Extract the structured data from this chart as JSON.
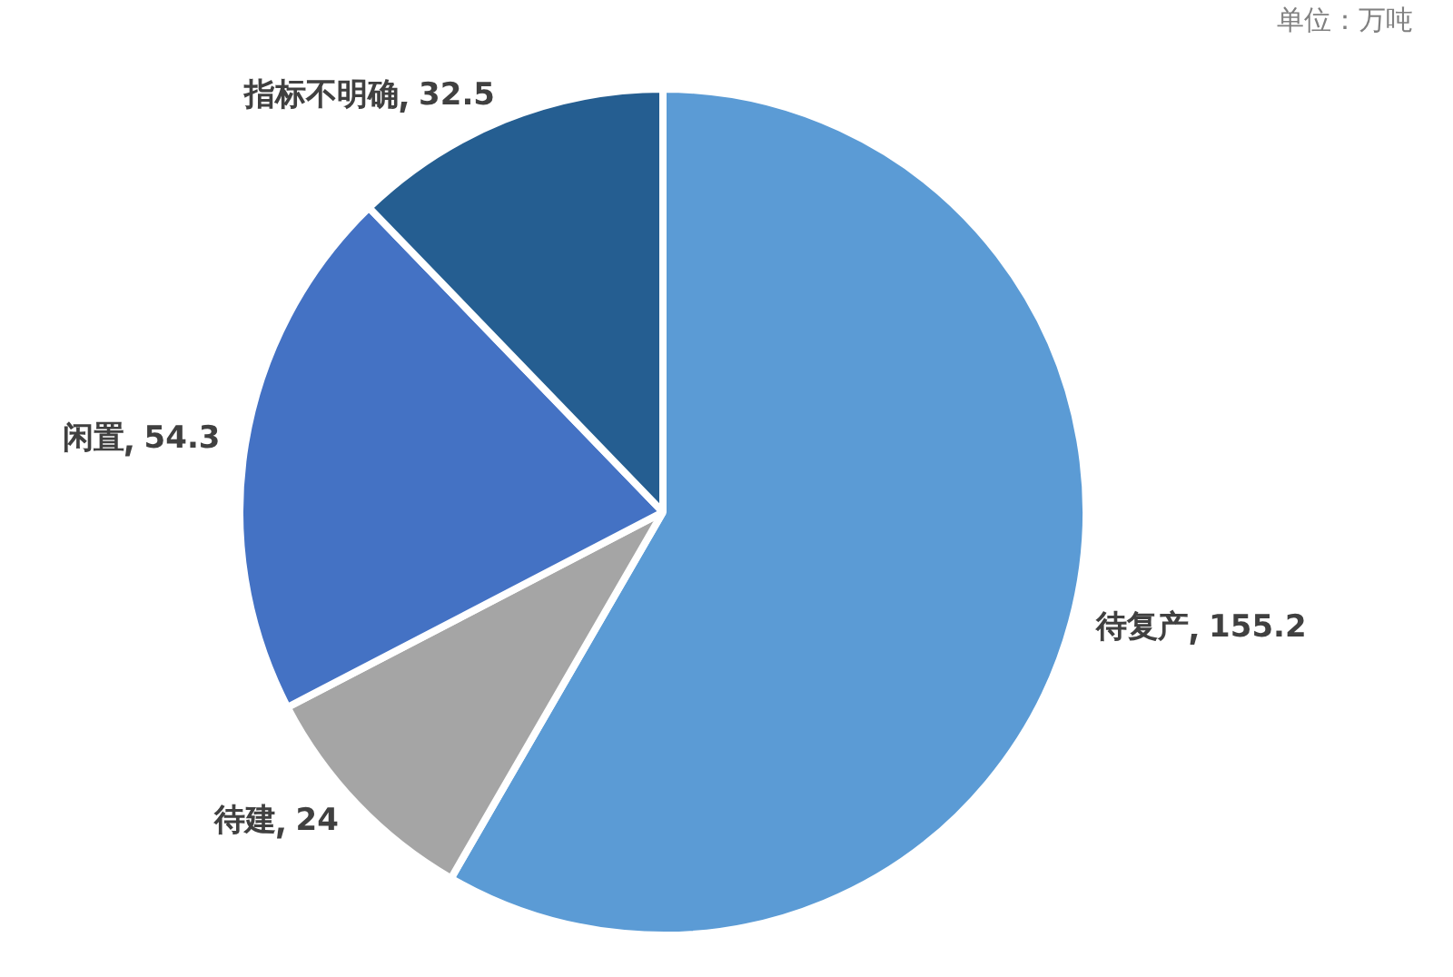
{
  "chart_data": {
    "type": "pie",
    "categories": [
      "待复产",
      "待建",
      "闲置",
      "指标不明确"
    ],
    "values": [
      155.2,
      24,
      54.3,
      32.5
    ],
    "colors": [
      "#5b9bd5",
      "#a5a5a5",
      "#4472c4",
      "#255e91"
    ],
    "data_labels": true,
    "legend": false,
    "annotations": [
      "单位：万吨"
    ]
  }
}
